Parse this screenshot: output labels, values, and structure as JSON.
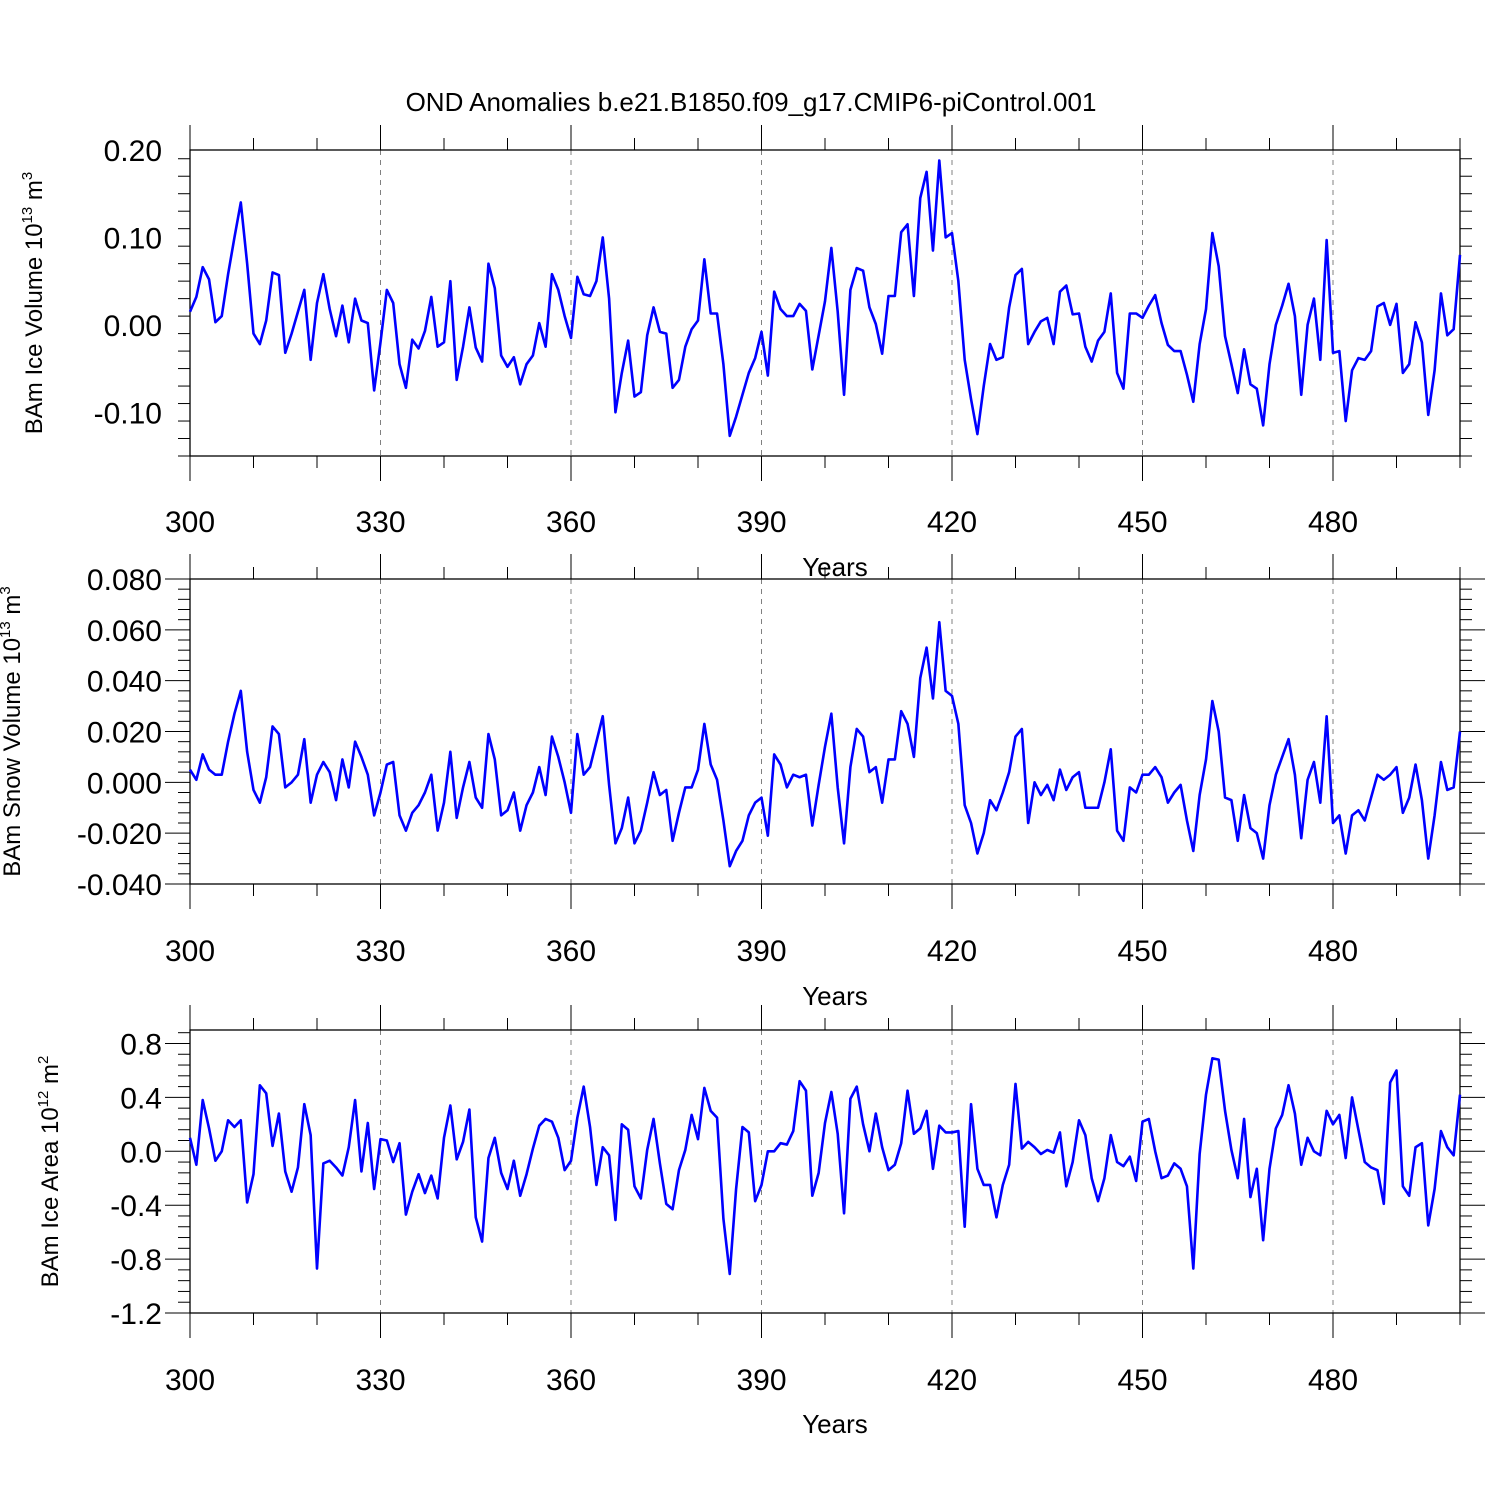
{
  "page": {
    "title": "OND Anomalies b.e21.B1850.f09_g17.CMIP6-piControl.001"
  },
  "colors": {
    "series": "#0000ff",
    "axis": "#000000",
    "grid": "#808080"
  },
  "chart_data": [
    {
      "type": "line",
      "xlabel": "Years",
      "ylabel_parts": {
        "main": "BAm Ice Volume 10",
        "exp": "13",
        "unit": " m",
        "unit_exp": "3"
      },
      "xlim": [
        300,
        500
      ],
      "ylim": [
        -0.15,
        0.2
      ],
      "xticks": [
        300,
        330,
        360,
        390,
        420,
        450,
        480
      ],
      "yticks": [
        -0.1,
        0.0,
        0.1,
        0.2
      ],
      "ytick_labels": [
        "-0.10",
        "0.00",
        "0.10",
        "0.20"
      ],
      "grid_x": true,
      "x_start": 300,
      "series": [
        {
          "values": [
            0.015,
            0.032,
            0.066,
            0.052,
            0.003,
            0.01,
            0.058,
            0.1,
            0.14,
            0.07,
            -0.01,
            -0.022,
            0.005,
            0.06,
            0.057,
            -0.032,
            -0.01,
            0.015,
            0.04,
            -0.04,
            0.025,
            0.058,
            0.018,
            -0.013,
            0.022,
            -0.02,
            0.03,
            0.005,
            0.002,
            -0.075,
            -0.02,
            0.04,
            0.025,
            -0.045,
            -0.072,
            -0.017,
            -0.027,
            -0.007,
            0.032,
            -0.025,
            -0.02,
            0.05,
            -0.063,
            -0.025,
            0.02,
            -0.026,
            -0.042,
            0.07,
            0.042,
            -0.035,
            -0.048,
            -0.037,
            -0.068,
            -0.045,
            -0.035,
            0.002,
            -0.025,
            0.058,
            0.04,
            0.01,
            -0.015,
            0.055,
            0.035,
            0.033,
            0.05,
            0.1,
            0.03,
            -0.1,
            -0.055,
            -0.018,
            -0.082,
            -0.077,
            -0.012,
            0.02,
            -0.008,
            -0.01,
            -0.072,
            -0.063,
            -0.025,
            -0.005,
            0.005,
            0.075,
            0.013,
            0.013,
            -0.045,
            -0.127,
            -0.105,
            -0.08,
            -0.055,
            -0.038,
            -0.008,
            -0.058,
            0.038,
            0.018,
            0.01,
            0.01,
            0.024,
            0.016,
            -0.051,
            -0.012,
            0.027,
            0.088,
            0.015,
            -0.08,
            0.04,
            0.065,
            0.062,
            0.02,
            0.001,
            -0.033,
            0.033,
            0.033,
            0.106,
            0.115,
            0.033,
            0.145,
            0.175,
            0.085,
            0.188,
            0.1,
            0.105,
            0.05,
            -0.04,
            -0.085,
            -0.125,
            -0.07,
            -0.022,
            -0.04,
            -0.037,
            0.02,
            0.057,
            0.064,
            -0.022,
            -0.008,
            0.004,
            0.008,
            -0.022,
            0.038,
            0.045,
            0.012,
            0.013,
            -0.025,
            -0.042,
            -0.018,
            -0.008,
            0.036,
            -0.055,
            -0.073,
            0.013,
            0.013,
            0.008,
            0.022,
            0.034,
            0.002,
            -0.023,
            -0.03,
            -0.03,
            -0.057,
            -0.088,
            -0.022,
            0.018,
            0.105,
            0.067,
            -0.013,
            -0.045,
            -0.078,
            -0.028,
            -0.068,
            -0.073,
            -0.115,
            -0.045,
            0.0,
            0.022,
            0.047,
            0.01,
            -0.08,
            0.0,
            0.03,
            -0.04,
            0.097,
            -0.032,
            -0.03,
            -0.11,
            -0.052,
            -0.038,
            -0.04,
            -0.03,
            0.021,
            0.025,
            0.0,
            0.024,
            -0.055,
            -0.045,
            0.003,
            -0.02,
            -0.103,
            -0.052,
            0.036,
            -0.012,
            -0.005,
            0.08
          ]
        }
      ]
    },
    {
      "type": "line",
      "xlabel": "Years",
      "ylabel_parts": {
        "main": "BAm Snow Volume 10",
        "exp": "13",
        "unit": " m",
        "unit_exp": "3"
      },
      "xlim": [
        300,
        500
      ],
      "ylim": [
        -0.04,
        0.08
      ],
      "xticks": [
        300,
        330,
        360,
        390,
        420,
        450,
        480
      ],
      "yticks": [
        -0.04,
        -0.02,
        0.0,
        0.02,
        0.04,
        0.06,
        0.08
      ],
      "ytick_labels": [
        "-0.040",
        "-0.020",
        "0.000",
        "0.020",
        "0.040",
        "0.060",
        "0.080"
      ],
      "grid_x": true,
      "x_start": 300,
      "series": [
        {
          "values": [
            0.005,
            0.001,
            0.011,
            0.005,
            0.003,
            0.003,
            0.016,
            0.027,
            0.036,
            0.012,
            -0.003,
            -0.008,
            0.002,
            0.022,
            0.019,
            -0.002,
            0.0,
            0.003,
            0.017,
            -0.008,
            0.003,
            0.008,
            0.004,
            -0.007,
            0.009,
            -0.002,
            0.016,
            0.01,
            0.003,
            -0.013,
            -0.004,
            0.007,
            0.008,
            -0.013,
            -0.019,
            -0.012,
            -0.009,
            -0.004,
            0.003,
            -0.019,
            -0.008,
            0.012,
            -0.014,
            -0.002,
            0.008,
            -0.006,
            -0.01,
            0.019,
            0.009,
            -0.013,
            -0.011,
            -0.004,
            -0.019,
            -0.009,
            -0.004,
            0.006,
            -0.005,
            0.018,
            0.01,
            0.0,
            -0.012,
            0.019,
            0.003,
            0.006,
            0.016,
            0.026,
            -0.001,
            -0.024,
            -0.018,
            -0.006,
            -0.024,
            -0.019,
            -0.008,
            0.004,
            -0.005,
            -0.003,
            -0.023,
            -0.012,
            -0.002,
            -0.002,
            0.005,
            0.023,
            0.007,
            0.001,
            -0.015,
            -0.033,
            -0.027,
            -0.023,
            -0.013,
            -0.008,
            -0.006,
            -0.021,
            0.011,
            0.007,
            -0.002,
            0.003,
            0.002,
            0.003,
            -0.017,
            -0.001,
            0.014,
            0.027,
            -0.002,
            -0.024,
            0.006,
            0.021,
            0.018,
            0.004,
            0.006,
            -0.008,
            0.009,
            0.009,
            0.028,
            0.023,
            0.01,
            0.041,
            0.053,
            0.033,
            0.063,
            0.036,
            0.034,
            0.023,
            -0.009,
            -0.016,
            -0.028,
            -0.02,
            -0.007,
            -0.011,
            -0.004,
            0.004,
            0.018,
            0.021,
            -0.016,
            0.0,
            -0.005,
            -0.001,
            -0.007,
            0.005,
            -0.003,
            0.002,
            0.004,
            -0.01,
            -0.01,
            -0.01,
            0.0,
            0.013,
            -0.019,
            -0.023,
            -0.002,
            -0.004,
            0.003,
            0.003,
            0.006,
            0.002,
            -0.008,
            -0.004,
            -0.001,
            -0.015,
            -0.027,
            -0.005,
            0.009,
            0.032,
            0.02,
            -0.006,
            -0.007,
            -0.023,
            -0.005,
            -0.018,
            -0.02,
            -0.03,
            -0.009,
            0.003,
            0.01,
            0.017,
            0.003,
            -0.022,
            0.001,
            0.008,
            -0.008,
            0.026,
            -0.016,
            -0.013,
            -0.028,
            -0.013,
            -0.011,
            -0.015,
            -0.006,
            0.003,
            0.001,
            0.003,
            0.006,
            -0.012,
            -0.006,
            0.007,
            -0.007,
            -0.03,
            -0.013,
            0.008,
            -0.003,
            -0.002,
            0.02
          ]
        }
      ]
    },
    {
      "type": "line",
      "xlabel": "Years",
      "ylabel_parts": {
        "main": "BAm Ice Area 10",
        "exp": "12",
        "unit": " m",
        "unit_exp": "2"
      },
      "xlim": [
        300,
        500
      ],
      "ylim": [
        -1.2,
        0.9
      ],
      "xticks": [
        300,
        330,
        360,
        390,
        420,
        450,
        480
      ],
      "yticks": [
        -1.2,
        -0.8,
        -0.4,
        0.0,
        0.4,
        0.8
      ],
      "ytick_labels": [
        "-1.2",
        "-0.8",
        "-0.4",
        "0.0",
        "0.4",
        "0.8"
      ],
      "grid_x": true,
      "x_start": 300,
      "series": [
        {
          "values": [
            0.1,
            -0.1,
            0.38,
            0.17,
            -0.07,
            0.0,
            0.23,
            0.18,
            0.23,
            -0.38,
            -0.17,
            0.49,
            0.43,
            0.04,
            0.28,
            -0.15,
            -0.3,
            -0.12,
            0.35,
            0.12,
            -0.87,
            -0.09,
            -0.07,
            -0.12,
            -0.18,
            0.03,
            0.38,
            -0.15,
            0.21,
            -0.28,
            0.09,
            0.08,
            -0.08,
            0.06,
            -0.47,
            -0.3,
            -0.17,
            -0.31,
            -0.18,
            -0.35,
            0.1,
            0.34,
            -0.06,
            0.07,
            0.31,
            -0.49,
            -0.67,
            -0.05,
            0.1,
            -0.16,
            -0.28,
            -0.07,
            -0.33,
            -0.17,
            0.02,
            0.19,
            0.24,
            0.22,
            0.1,
            -0.14,
            -0.07,
            0.25,
            0.48,
            0.18,
            -0.25,
            0.03,
            -0.03,
            -0.51,
            0.2,
            0.16,
            -0.26,
            -0.35,
            0.01,
            0.24,
            -0.09,
            -0.39,
            -0.43,
            -0.14,
            0.01,
            0.27,
            0.09,
            0.47,
            0.3,
            0.25,
            -0.5,
            -0.91,
            -0.28,
            0.18,
            0.14,
            -0.37,
            -0.25,
            0.0,
            0.0,
            0.06,
            0.05,
            0.15,
            0.52,
            0.45,
            -0.33,
            -0.16,
            0.21,
            0.44,
            0.13,
            -0.46,
            0.39,
            0.48,
            0.2,
            0.0,
            0.28,
            0.03,
            -0.14,
            -0.1,
            0.06,
            0.45,
            0.13,
            0.17,
            0.3,
            -0.13,
            0.19,
            0.14,
            0.14,
            0.15,
            -0.56,
            0.35,
            -0.13,
            -0.25,
            -0.25,
            -0.49,
            -0.25,
            -0.1,
            0.5,
            0.02,
            0.07,
            0.03,
            -0.02,
            0.01,
            -0.01,
            0.14,
            -0.26,
            -0.08,
            0.23,
            0.12,
            -0.2,
            -0.37,
            -0.2,
            0.12,
            -0.08,
            -0.11,
            -0.04,
            -0.22,
            0.22,
            0.24,
            0.0,
            -0.2,
            -0.18,
            -0.09,
            -0.13,
            -0.26,
            -0.87,
            -0.02,
            0.42,
            0.69,
            0.68,
            0.3,
            0.01,
            -0.2,
            0.24,
            -0.34,
            -0.13,
            -0.66,
            -0.13,
            0.17,
            0.27,
            0.49,
            0.28,
            -0.1,
            0.1,
            0.0,
            -0.03,
            0.3,
            0.2,
            0.27,
            -0.05,
            0.4,
            0.16,
            -0.08,
            -0.12,
            -0.14,
            -0.39,
            0.51,
            0.6,
            -0.26,
            -0.33,
            0.03,
            0.06,
            -0.55,
            -0.28,
            0.15,
            0.03,
            -0.03,
            0.42
          ]
        }
      ]
    }
  ]
}
